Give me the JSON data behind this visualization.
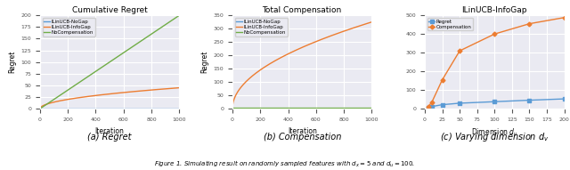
{
  "plot1": {
    "title": "Cumulative Regret",
    "xlabel": "Iteration",
    "ylabel": "Regret",
    "caption": "(a) Regret",
    "xlim": [
      0,
      1000
    ],
    "ylim": [
      0,
      200
    ],
    "lines": [
      {
        "label": "ILinUCB-NoGap",
        "color": "#5b9bd5"
      },
      {
        "label": "ILinUCB-InfoGap",
        "color": "#ed7d31"
      },
      {
        "label": "NoCompensation",
        "color": "#70ad47"
      }
    ]
  },
  "plot2": {
    "title": "Total Compensation",
    "xlabel": "Iteration",
    "ylabel": "Regret",
    "caption": "(b) Compensation",
    "xlim": [
      0,
      1000
    ],
    "ylim": [
      0,
      350
    ],
    "lines": [
      {
        "label": "ILinUCB-NoGap",
        "color": "#5b9bd5"
      },
      {
        "label": "ILinUCB-InfoGap",
        "color": "#ed7d31"
      },
      {
        "label": "NoCompensation",
        "color": "#70ad47"
      }
    ]
  },
  "plot3": {
    "title": "ILinUCB-InfoGap",
    "xlabel": "Dimension $d_v$",
    "caption": "(c) Varying dimension $d_v$",
    "xlim": [
      0,
      200
    ],
    "ylim": [
      0,
      500
    ],
    "xticks": [
      0,
      25,
      50,
      75,
      100,
      125,
      150,
      175,
      200
    ],
    "dim_x": [
      5,
      10,
      25,
      50,
      100,
      150,
      200
    ],
    "regret_y": [
      8,
      12,
      22,
      30,
      38,
      46,
      53
    ],
    "comp_y": [
      12,
      35,
      155,
      310,
      400,
      455,
      488
    ],
    "regret_color": "#5b9bd5",
    "comp_color": "#ed7d31"
  },
  "fig_caption": "Figure 1. Simulating result on randomly sampled features with $d_x = 5$ and $d_u = 100$."
}
